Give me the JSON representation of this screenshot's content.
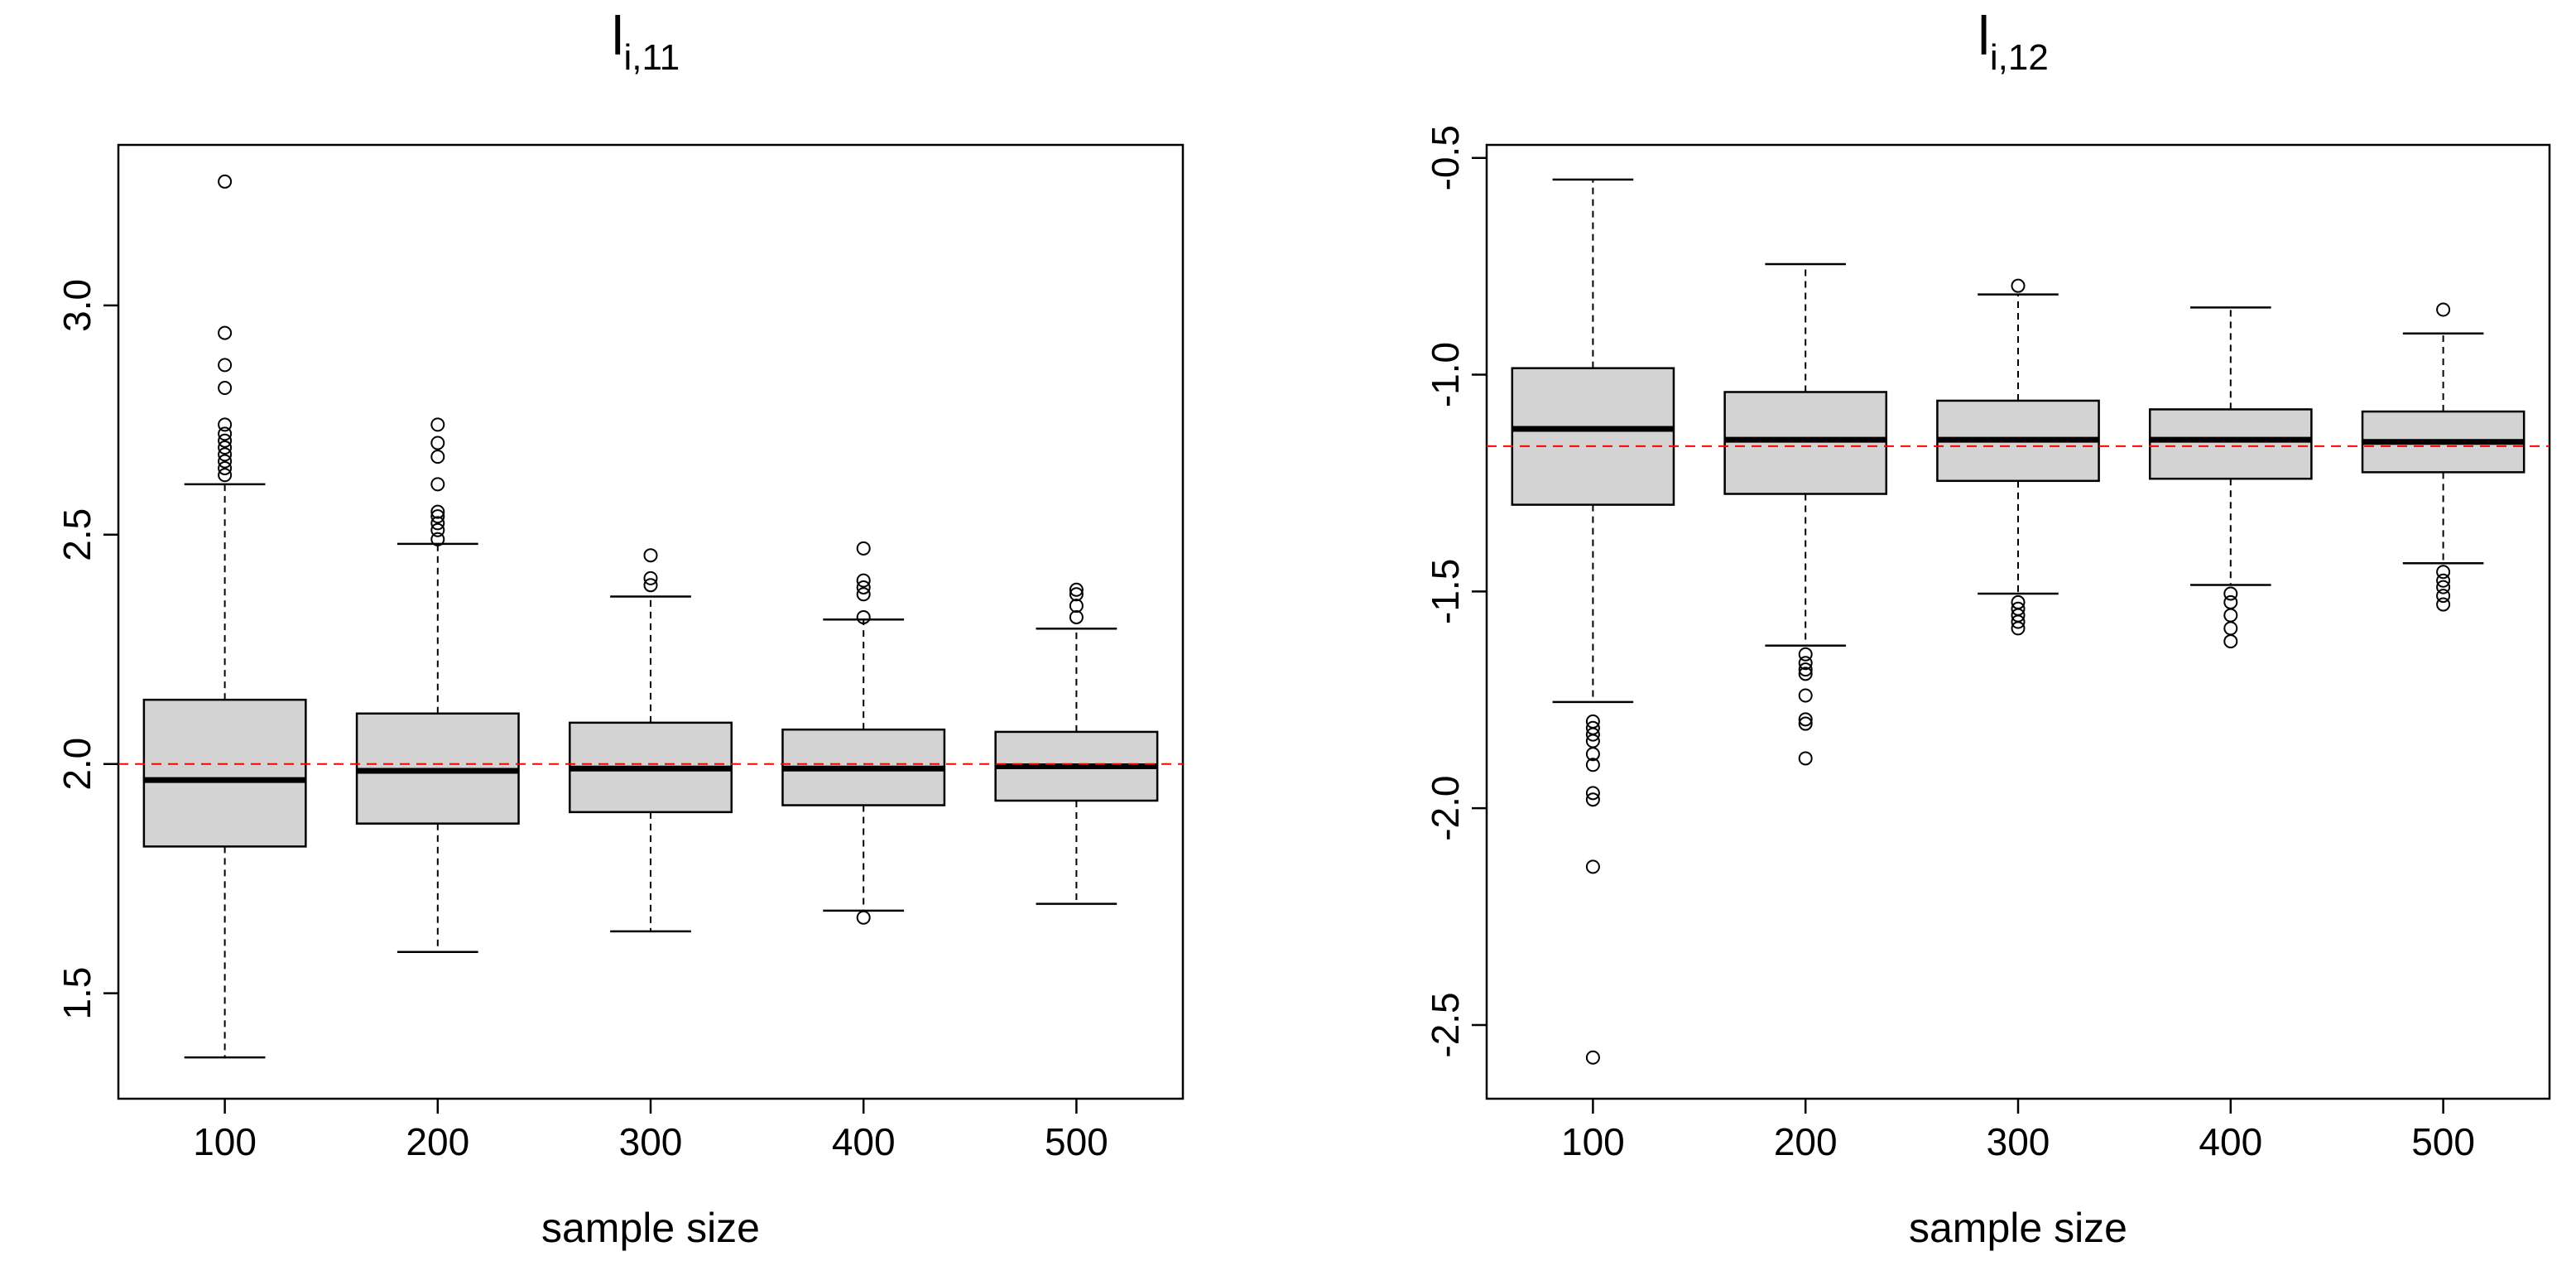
{
  "chart_data": [
    {
      "type": "boxplot",
      "title_main": "l",
      "title_sub": "i,11",
      "xlabel": "sample size",
      "ylabel": "",
      "categories": [
        "100",
        "200",
        "300",
        "400",
        "500"
      ],
      "ylim": [
        1.27,
        3.35
      ],
      "yticks": [
        1.5,
        2.0,
        2.5,
        3.0
      ],
      "ytick_labels": [
        "1.5",
        "2.0",
        "2.5",
        "3.0"
      ],
      "reference_line": {
        "value": 2.0,
        "color": "#ff0000",
        "style": "dashed"
      },
      "box_fill": "#d3d3d3",
      "boxes": [
        {
          "category": "100",
          "whisker_low": 1.36,
          "q1": 1.82,
          "median": 1.965,
          "q3": 2.14,
          "whisker_high": 2.61,
          "outliers": [
            2.63,
            2.645,
            2.66,
            2.675,
            2.69,
            2.705,
            2.72,
            2.74,
            2.82,
            2.87,
            2.94,
            3.27
          ]
        },
        {
          "category": "200",
          "whisker_low": 1.59,
          "q1": 1.87,
          "median": 1.985,
          "q3": 2.11,
          "whisker_high": 2.48,
          "outliers": [
            2.49,
            2.51,
            2.525,
            2.54,
            2.55,
            2.61,
            2.67,
            2.7,
            2.74
          ]
        },
        {
          "category": "300",
          "whisker_low": 1.635,
          "q1": 1.895,
          "median": 1.99,
          "q3": 2.09,
          "whisker_high": 2.365,
          "outliers": [
            2.39,
            2.405,
            2.455
          ]
        },
        {
          "category": "400",
          "whisker_low": 1.68,
          "q1": 1.91,
          "median": 1.99,
          "q3": 2.075,
          "whisker_high": 2.315,
          "outliers": [
            1.665,
            2.32,
            2.37,
            2.385,
            2.4,
            2.47
          ]
        },
        {
          "category": "500",
          "whisker_low": 1.695,
          "q1": 1.92,
          "median": 1.995,
          "q3": 2.07,
          "whisker_high": 2.295,
          "outliers": [
            2.32,
            2.345,
            2.37,
            2.38
          ]
        }
      ]
    },
    {
      "type": "boxplot",
      "title_main": "l",
      "title_sub": "i,12",
      "xlabel": "sample size",
      "ylabel": "",
      "categories": [
        "100",
        "200",
        "300",
        "400",
        "500"
      ],
      "ylim": [
        -2.67,
        -0.47
      ],
      "yticks": [
        -2.5,
        -2.0,
        -1.5,
        -1.0,
        -0.5
      ],
      "ytick_labels": [
        "-2.5",
        "-2.0",
        "-1.5",
        "-1.0",
        "-0.5"
      ],
      "reference_line": {
        "value": -1.165,
        "color": "#ff0000",
        "style": "dashed"
      },
      "box_fill": "#d3d3d3",
      "boxes": [
        {
          "category": "100",
          "whisker_low": -1.755,
          "q1": -1.3,
          "median": -1.125,
          "q3": -0.985,
          "whisker_high": -0.55,
          "outliers": [
            -1.8,
            -1.815,
            -1.83,
            -1.845,
            -1.875,
            -1.9,
            -1.965,
            -1.98,
            -2.135,
            -2.575
          ]
        },
        {
          "category": "200",
          "whisker_low": -1.625,
          "q1": -1.275,
          "median": -1.15,
          "q3": -1.04,
          "whisker_high": -0.745,
          "outliers": [
            -1.645,
            -1.665,
            -1.68,
            -1.69,
            -1.74,
            -1.795,
            -1.805,
            -1.885
          ]
        },
        {
          "category": "300",
          "whisker_low": -1.505,
          "q1": -1.245,
          "median": -1.15,
          "q3": -1.06,
          "whisker_high": -0.815,
          "outliers": [
            -0.795,
            -1.525,
            -1.54,
            -1.555,
            -1.57,
            -1.585
          ]
        },
        {
          "category": "400",
          "whisker_low": -1.485,
          "q1": -1.24,
          "median": -1.15,
          "q3": -1.08,
          "whisker_high": -0.845,
          "outliers": [
            -1.505,
            -1.525,
            -1.555,
            -1.585,
            -1.615
          ]
        },
        {
          "category": "500",
          "whisker_low": -1.435,
          "q1": -1.225,
          "median": -1.155,
          "q3": -1.085,
          "whisker_high": -0.905,
          "outliers": [
            -0.85,
            -1.455,
            -1.475,
            -1.49,
            -1.51,
            -1.53
          ]
        }
      ]
    }
  ]
}
